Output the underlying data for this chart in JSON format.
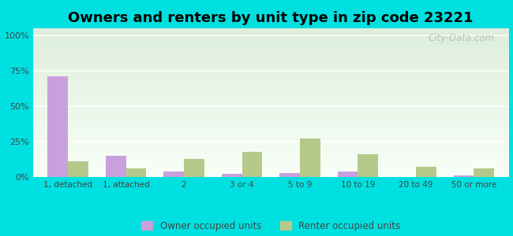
{
  "title": "Owners and renters by unit type in zip code 23221",
  "categories": [
    "1, detached",
    "1, attached",
    "2",
    "3 or 4",
    "5 to 9",
    "10 to 19",
    "20 to 49",
    "50 or more"
  ],
  "owner_values": [
    71,
    15,
    4,
    2,
    3,
    4,
    0,
    1
  ],
  "renter_values": [
    11,
    6,
    13,
    18,
    27,
    16,
    7,
    6
  ],
  "owner_color": "#c9a0dc",
  "renter_color": "#b5c98a",
  "background_color": "#00e0e0",
  "plot_bg_color_top": "#ddeedd",
  "plot_bg_color_bottom": "#f8fff8",
  "yticks": [
    0,
    25,
    50,
    75,
    100
  ],
  "ytick_labels": [
    "0%",
    "25%",
    "50%",
    "75%",
    "100%"
  ],
  "ylim": [
    0,
    105
  ],
  "bar_width": 0.35,
  "legend_owner": "Owner occupied units",
  "legend_renter": "Renter occupied units",
  "title_fontsize": 13,
  "watermark": "City-Data.com"
}
